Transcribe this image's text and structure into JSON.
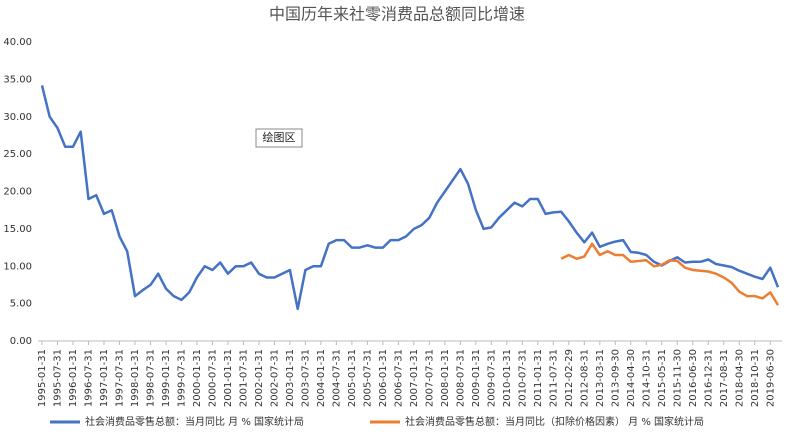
{
  "chart_data": {
    "type": "line",
    "title": "中国历年来社零消费品总额同比增速",
    "tooltip": "绘图区",
    "categories": [
      "1995-01-31",
      null,
      "1995-07-31",
      null,
      "1996-01-31",
      null,
      "1996-07-31",
      null,
      "1997-01-31",
      null,
      "1997-07-31",
      null,
      "1998-01-31",
      null,
      "1998-07-31",
      null,
      "1999-01-31",
      null,
      "1999-07-31",
      null,
      "2000-01-31",
      null,
      "2000-07-31",
      null,
      "2001-01-31",
      null,
      "2001-07-31",
      null,
      "2002-01-31",
      null,
      "2002-07-31",
      null,
      "2003-01-31",
      null,
      "2003-07-31",
      null,
      "2004-01-31",
      null,
      "2004-07-31",
      null,
      "2005-01-31",
      null,
      "2005-07-31",
      null,
      "2006-01-31",
      null,
      "2006-07-31",
      null,
      "2007-01-31",
      null,
      "2007-07-31",
      null,
      "2008-01-31",
      null,
      "2008-07-31",
      null,
      "2009-01-31",
      null,
      "2009-07-31",
      null,
      "2010-01-31",
      null,
      "2010-07-31",
      null,
      "2011-01-31",
      null,
      "2011-07-31",
      null,
      "2012-02-29",
      null,
      "2012-08-31",
      null,
      "2013-03-31",
      null,
      "2013-09-30",
      null,
      "2014-04-30",
      null,
      "2014-10-31",
      null,
      "2015-05-31",
      null,
      "2015-11-30",
      null,
      "2016-06-30",
      null,
      "2016-12-31",
      null,
      "2017-08-31",
      null,
      "2018-04-30",
      null,
      "2018-10-31",
      null,
      "2019-06-30",
      null
    ],
    "series": [
      {
        "name": "社会消费品零售总额：当月同比  月  %  国家统计局",
        "color": "#4472c4",
        "values": [
          34.2,
          30,
          28.5,
          26,
          26,
          28,
          19,
          19.5,
          17,
          17.5,
          14,
          12,
          6,
          6.8,
          7.5,
          9,
          7,
          6,
          5.5,
          6.5,
          8.5,
          10,
          9.5,
          10.5,
          9,
          10,
          10,
          10.5,
          9,
          8.5,
          8.5,
          9,
          9.5,
          4.3,
          9.5,
          10,
          10,
          13,
          13.5,
          13.5,
          12.5,
          12.5,
          12.8,
          12.5,
          12.5,
          13.5,
          13.5,
          14,
          15,
          15.5,
          16.5,
          18.5,
          20,
          21.5,
          23,
          21,
          17.5,
          15,
          15.2,
          16.5,
          17.5,
          18.5,
          18,
          19,
          19,
          17,
          17.2,
          17.3,
          16,
          14.5,
          13.2,
          14.5,
          12.6,
          13,
          13.3,
          13.5,
          11.9,
          11.8,
          11.5,
          10.6,
          10.1,
          10.7,
          11.2,
          10.5,
          10.6,
          10.6,
          10.9,
          10.3,
          10.1,
          9.9,
          9.4,
          9.0,
          8.6,
          8.3,
          9.8,
          7.2
        ]
      },
      {
        "name": "社会消费品零售总额：当月同比（扣除价格因素）  月  %  国家统计局",
        "color": "#ed7d31",
        "values": [
          null,
          null,
          null,
          null,
          null,
          null,
          null,
          null,
          null,
          null,
          null,
          null,
          null,
          null,
          null,
          null,
          null,
          null,
          null,
          null,
          null,
          null,
          null,
          null,
          null,
          null,
          null,
          null,
          null,
          null,
          null,
          null,
          null,
          null,
          null,
          null,
          null,
          null,
          null,
          null,
          null,
          null,
          null,
          null,
          null,
          null,
          null,
          null,
          null,
          null,
          null,
          null,
          null,
          null,
          null,
          null,
          null,
          null,
          null,
          null,
          null,
          null,
          null,
          null,
          null,
          null,
          null,
          11.0,
          11.5,
          11,
          11.3,
          13,
          11.5,
          12,
          11.5,
          11.5,
          10.6,
          10.7,
          10.8,
          10,
          10.2,
          10.8,
          10.7,
          9.8,
          9.5,
          9.4,
          9.3,
          9.0,
          8.5,
          7.8,
          6.6,
          6.0,
          6.0,
          5.7,
          6.5,
          4.8
        ]
      }
    ],
    "ylim": [
      0,
      40
    ],
    "yticks": [
      {
        "value": 0,
        "label": "0.00"
      },
      {
        "value": 5,
        "label": "5.00"
      },
      {
        "value": 10,
        "label": "10.00"
      },
      {
        "value": 15,
        "label": "15.00"
      },
      {
        "value": 20,
        "label": "20.00"
      },
      {
        "value": 25,
        "label": "25.00"
      },
      {
        "value": 30,
        "label": "30.00"
      },
      {
        "value": 35,
        "label": "35.00"
      },
      {
        "value": 40,
        "label": "40.00"
      }
    ],
    "grid": false
  }
}
